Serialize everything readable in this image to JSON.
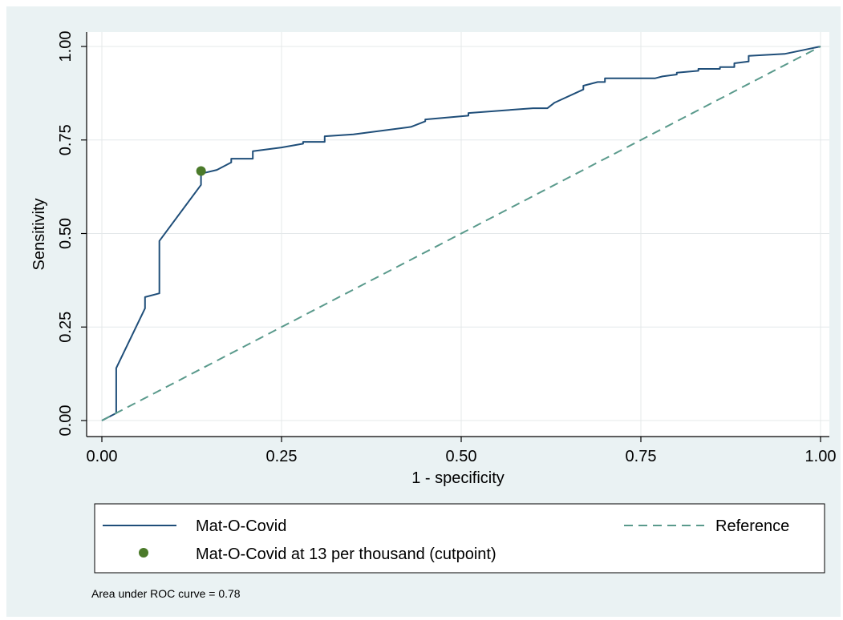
{
  "chart_data": {
    "type": "line",
    "xlabel": "1 - specificity",
    "ylabel": "Sensitivity",
    "xlim": [
      0,
      1
    ],
    "ylim": [
      0,
      1
    ],
    "x_ticks": [
      "0.00",
      "0.25",
      "0.50",
      "0.75",
      "1.00"
    ],
    "y_ticks": [
      "0.00",
      "0.25",
      "0.50",
      "0.75",
      "1.00"
    ],
    "grid": true,
    "legend_position": "bottom",
    "series": [
      {
        "name": "Mat-O-Covid",
        "style": "solid",
        "color": "#1f4e79",
        "x": [
          0,
          0.02,
          0.02,
          0.06,
          0.06,
          0.08,
          0.08,
          0.138,
          0.138,
          0.16,
          0.18,
          0.18,
          0.21,
          0.21,
          0.25,
          0.28,
          0.28,
          0.31,
          0.31,
          0.35,
          0.43,
          0.45,
          0.45,
          0.51,
          0.51,
          0.6,
          0.62,
          0.63,
          0.67,
          0.67,
          0.69,
          0.7,
          0.7,
          0.77,
          0.78,
          0.8,
          0.8,
          0.83,
          0.83,
          0.86,
          0.86,
          0.88,
          0.88,
          0.9,
          0.9,
          0.95,
          1.0
        ],
        "y": [
          0,
          0.02,
          0.14,
          0.3,
          0.33,
          0.34,
          0.48,
          0.63,
          0.66,
          0.67,
          0.69,
          0.7,
          0.7,
          0.72,
          0.73,
          0.74,
          0.745,
          0.745,
          0.76,
          0.765,
          0.785,
          0.8,
          0.805,
          0.815,
          0.822,
          0.835,
          0.835,
          0.85,
          0.885,
          0.895,
          0.905,
          0.905,
          0.915,
          0.915,
          0.92,
          0.925,
          0.93,
          0.935,
          0.94,
          0.94,
          0.945,
          0.945,
          0.955,
          0.96,
          0.975,
          0.98,
          1.0
        ]
      },
      {
        "name": "Reference",
        "style": "dashed",
        "color": "#5a9a8c",
        "x": [
          0,
          1
        ],
        "y": [
          0,
          1
        ]
      }
    ],
    "points": [
      {
        "name": "Mat-O-Covid at 13 per thousand (cutpoint)",
        "color": "#4b7a2a",
        "x": 0.138,
        "y": 0.667
      }
    ],
    "note": "Area under ROC curve = 0.78"
  }
}
